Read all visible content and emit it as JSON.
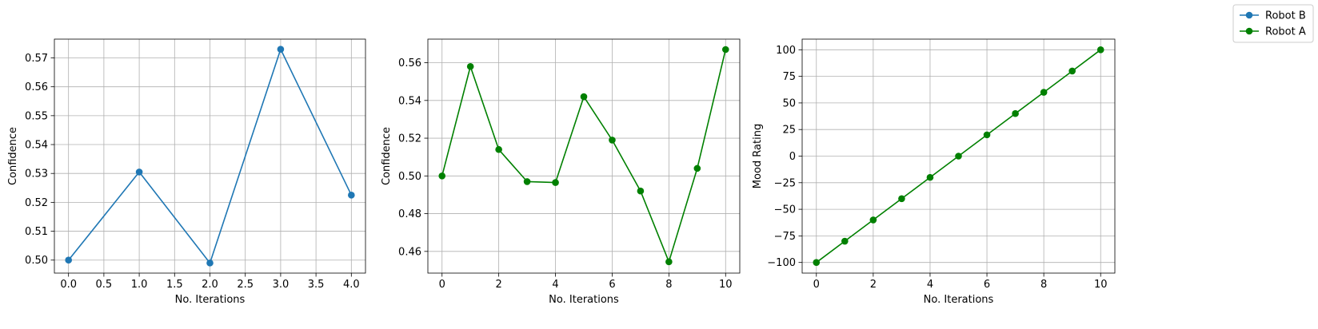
{
  "legend": {
    "placement": "top-right",
    "items": [
      {
        "label": "Robot B",
        "color": "#1f77b4"
      },
      {
        "label": "Robot A",
        "color": "#008000"
      }
    ]
  },
  "chart_data": [
    {
      "type": "line",
      "xlabel": "No. Iterations",
      "ylabel": "Confidence",
      "grid": true,
      "xlim": [
        -0.2,
        4.2
      ],
      "ylim": [
        0.4955,
        0.5765
      ],
      "xticks": [
        0.0,
        0.5,
        1.0,
        1.5,
        2.0,
        2.5,
        3.0,
        3.5,
        4.0
      ],
      "xtick_labels": [
        "0.0",
        "0.5",
        "1.0",
        "1.5",
        "2.0",
        "2.5",
        "3.0",
        "3.5",
        "4.0"
      ],
      "yticks": [
        0.5,
        0.51,
        0.52,
        0.53,
        0.54,
        0.55,
        0.56,
        0.57
      ],
      "ytick_labels": [
        "0.50",
        "0.51",
        "0.52",
        "0.53",
        "0.54",
        "0.55",
        "0.56",
        "0.57"
      ],
      "series": [
        {
          "name": "Robot B",
          "color": "#1f77b4",
          "x": [
            0,
            1,
            2,
            3,
            4
          ],
          "y": [
            0.5,
            0.5305,
            0.499,
            0.573,
            0.5225
          ]
        }
      ]
    },
    {
      "type": "line",
      "xlabel": "No. Iterations",
      "ylabel": "Confidence",
      "grid": true,
      "xlim": [
        -0.5,
        10.5
      ],
      "ylim": [
        0.4485,
        0.5725
      ],
      "xticks": [
        0,
        2,
        4,
        6,
        8,
        10
      ],
      "xtick_labels": [
        "0",
        "2",
        "4",
        "6",
        "8",
        "10"
      ],
      "yticks": [
        0.46,
        0.48,
        0.5,
        0.52,
        0.54,
        0.56
      ],
      "ytick_labels": [
        "0.46",
        "0.48",
        "0.50",
        "0.52",
        "0.54",
        "0.56"
      ],
      "series": [
        {
          "name": "Robot A",
          "color": "#008000",
          "x": [
            0,
            1,
            2,
            3,
            4,
            5,
            6,
            7,
            8,
            9,
            10
          ],
          "y": [
            0.5,
            0.558,
            0.514,
            0.497,
            0.4965,
            0.542,
            0.519,
            0.492,
            0.4545,
            0.504,
            0.567
          ]
        }
      ]
    },
    {
      "type": "line",
      "xlabel": "No. Iterations",
      "ylabel": "Mood Rating",
      "grid": true,
      "xlim": [
        -0.5,
        10.5
      ],
      "ylim": [
        -110,
        110
      ],
      "xticks": [
        0,
        2,
        4,
        6,
        8,
        10
      ],
      "xtick_labels": [
        "0",
        "2",
        "4",
        "6",
        "8",
        "10"
      ],
      "yticks": [
        -100,
        -75,
        -50,
        -25,
        0,
        25,
        50,
        75,
        100
      ],
      "ytick_labels": [
        "−100",
        "−75",
        "−50",
        "−25",
        "0",
        "25",
        "50",
        "75",
        "100"
      ],
      "series": [
        {
          "name": "Robot A",
          "color": "#008000",
          "x": [
            0,
            1,
            2,
            3,
            4,
            5,
            6,
            7,
            8,
            9,
            10
          ],
          "y": [
            -100,
            -80,
            -60,
            -40,
            -20,
            0,
            20,
            40,
            60,
            80,
            100
          ]
        }
      ]
    }
  ]
}
